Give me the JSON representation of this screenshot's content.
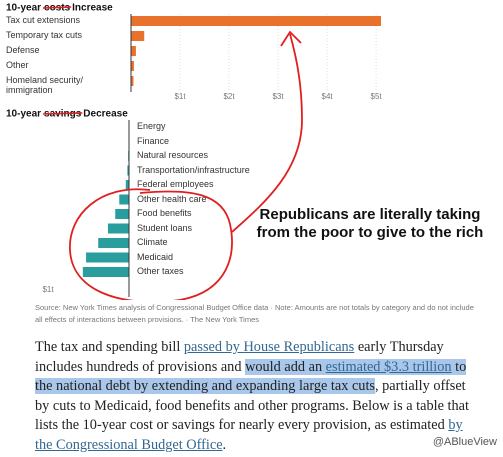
{
  "chart_data": [
    {
      "type": "bar",
      "orientation": "horizontal",
      "title": "10-year",
      "title_struck": "costs",
      "title_handwritten": "Increase",
      "categories": [
        "Tax cut extensions",
        "Temporary tax cuts",
        "Defense",
        "Other",
        "Homeland security/ immigration"
      ],
      "values": [
        5.1,
        0.27,
        0.1,
        0.06,
        0.05
      ],
      "color": "#e8722c",
      "xlim": [
        0,
        5.1
      ],
      "xticks": [
        {
          "value": 1,
          "label": "$1t"
        },
        {
          "value": 2,
          "label": "$2t"
        },
        {
          "value": 3,
          "label": "$3t"
        },
        {
          "value": 4,
          "label": "$4t"
        },
        {
          "value": 5,
          "label": "$5t"
        }
      ],
      "grid": true
    },
    {
      "type": "bar",
      "orientation": "horizontal",
      "title": "10-year",
      "title_struck": "savings",
      "title_handwritten": "Decrease",
      "categories": [
        "Energy",
        "Finance",
        "Natural resources",
        "Transportation/infrastructure",
        "Federal employees",
        "Other health care",
        "Food benefits",
        "Student loans",
        "Climate",
        "Medicaid",
        "Other taxes"
      ],
      "values": [
        -0.005,
        -0.005,
        -0.01,
        -0.02,
        -0.04,
        -0.12,
        -0.17,
        -0.26,
        -0.38,
        -0.53,
        -0.57
      ],
      "color": "#2a9d9f",
      "xlim": [
        -1,
        0
      ],
      "xticks": [
        {
          "value": -1,
          "label": "$1t"
        }
      ],
      "grid": false
    }
  ],
  "annotation": [
    "Republicans are literally taking",
    "from the poor to give to the rich"
  ],
  "source": "Source: New York Times analysis of Congressional Budget Office data · Note: Amounts are not totals by category and do not include all effects of interactions between provisions. · The New York Times",
  "article": {
    "segments": [
      {
        "text": "The tax and spending bill ",
        "link": false,
        "highlight": false
      },
      {
        "text": "passed by House Republicans",
        "link": true,
        "highlight": false
      },
      {
        "text": " early Thursday includes hundreds of provisions and ",
        "link": false,
        "highlight": false
      },
      {
        "text": "would add an ",
        "link": false,
        "highlight": true
      },
      {
        "text": "estimated $3.3 trillion",
        "link": true,
        "highlight": true
      },
      {
        "text": " to the national debt by extending and expanding large tax cuts",
        "link": false,
        "highlight": true
      },
      {
        "text": ", partially offset by cuts to Medicaid, food benefits and other programs. Below is a table that lists the 10-year cost or savings for nearly every provision, as estimated ",
        "link": false,
        "highlight": false
      },
      {
        "text": "by the Congressional Budget Office",
        "link": true,
        "highlight": false
      },
      {
        "text": ".",
        "link": false,
        "highlight": false
      }
    ]
  },
  "watermark": "@ABlueView"
}
